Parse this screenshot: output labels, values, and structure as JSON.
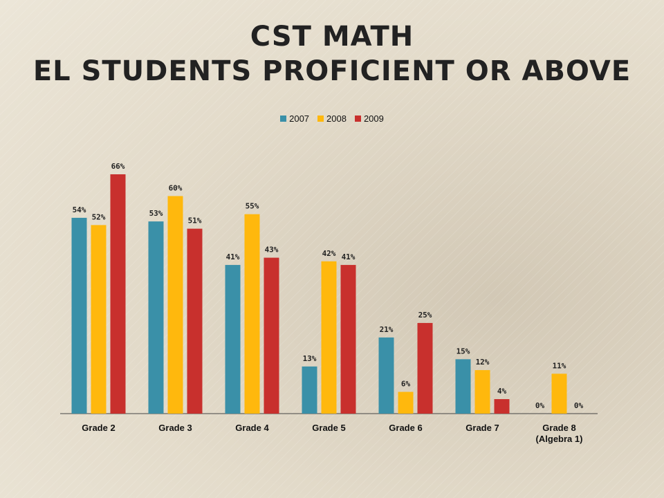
{
  "title_lines": [
    "CST Math",
    "EL Students Proficient or Above"
  ],
  "chart_data": {
    "type": "bar",
    "categories": [
      [
        "Grade 2"
      ],
      [
        "Grade 3"
      ],
      [
        "Grade 4"
      ],
      [
        "Grade 5"
      ],
      [
        "Grade 6"
      ],
      [
        "Grade 7"
      ],
      [
        "Grade 8",
        "(Algebra 1)"
      ]
    ],
    "series": [
      {
        "name": "2007",
        "color": "#3a90a8",
        "values": [
          54,
          53,
          41,
          13,
          21,
          15,
          0
        ]
      },
      {
        "name": "2008",
        "color": "#ffb80d",
        "values": [
          52,
          60,
          55,
          42,
          6,
          12,
          11
        ]
      },
      {
        "name": "2009",
        "color": "#c8302d",
        "values": [
          66,
          51,
          43,
          41,
          25,
          4,
          0
        ]
      }
    ],
    "value_suffix": "%",
    "ylim": [
      0,
      66
    ],
    "grid": false,
    "legend": "top-center"
  }
}
